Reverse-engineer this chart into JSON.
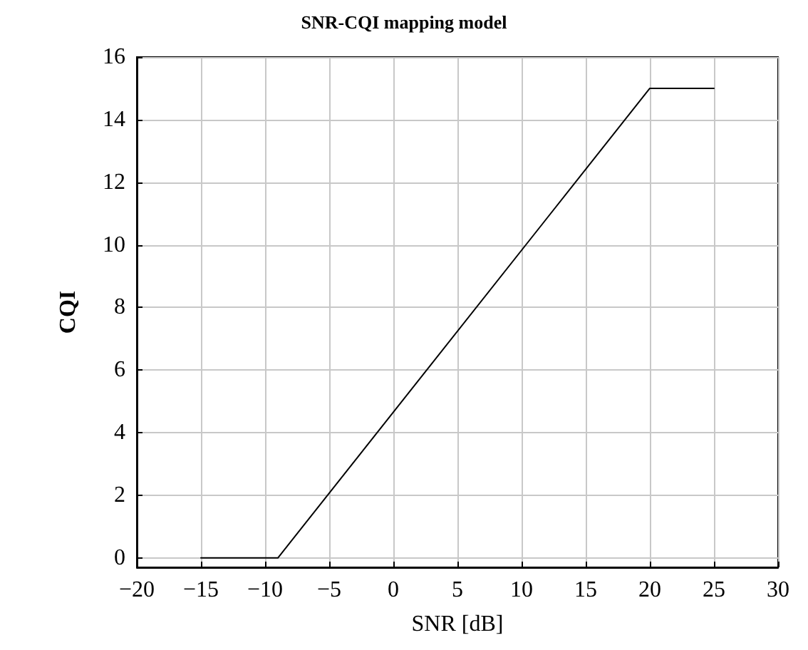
{
  "chart_data": {
    "type": "line",
    "title": "SNR-CQI mapping model",
    "xlabel": "SNR [dB]",
    "ylabel": "CQI",
    "x": [
      -15,
      -9,
      20,
      25
    ],
    "series": [
      {
        "color": "#000000",
        "values": [
          0,
          0,
          15,
          15
        ]
      }
    ],
    "xlim": [
      -20,
      30
    ],
    "xticks": [
      {
        "value": -20,
        "label": "−20"
      },
      {
        "value": -15,
        "label": "−15"
      },
      {
        "value": -10,
        "label": "−10"
      },
      {
        "value": -5,
        "label": "−5"
      },
      0,
      5,
      10,
      15,
      20,
      25,
      30
    ],
    "ylim": [
      -0.3,
      16
    ],
    "yticks": [
      0,
      2,
      4,
      6,
      8,
      10,
      12,
      14,
      16
    ],
    "grid": true,
    "marker": "none",
    "line_style": "solid"
  }
}
